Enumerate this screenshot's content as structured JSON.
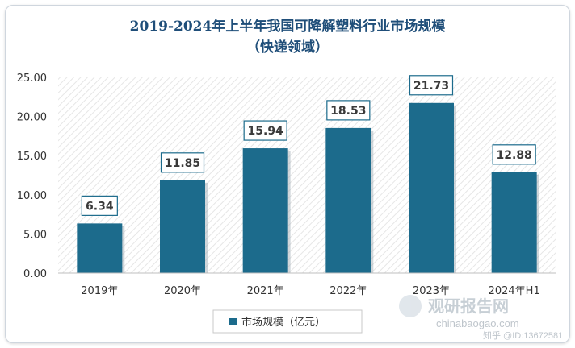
{
  "title_line1": "2019-2024年上半年我国可降解塑料行业市场规模",
  "title_line2": "（快递领域）",
  "legend_label": "市场规模（亿元）",
  "watermark": {
    "brand": "观研报告网",
    "site": "chinabaogao.com",
    "id": "知乎 @ID:13672581"
  },
  "colors": {
    "bar": "#1c6b8c",
    "axis_text": "#333333",
    "title": "#1f4e79"
  },
  "chart_data": {
    "type": "bar",
    "categories": [
      "2019年",
      "2020年",
      "2021年",
      "2022年",
      "2023年",
      "2024年H1"
    ],
    "values": [
      6.34,
      11.85,
      15.94,
      18.53,
      21.73,
      12.88
    ],
    "value_labels": [
      "6.34",
      "11.85",
      "15.94",
      "18.53",
      "21.73",
      "12.88"
    ],
    "yticks": [
      "0.00",
      "5.00",
      "10.00",
      "15.00",
      "20.00",
      "25.00"
    ],
    "ylim": [
      0,
      25
    ],
    "series": [
      {
        "name": "市场规模（亿元）",
        "values": [
          6.34,
          11.85,
          15.94,
          18.53,
          21.73,
          12.88
        ]
      }
    ],
    "grid": false,
    "legend": "bottom"
  }
}
